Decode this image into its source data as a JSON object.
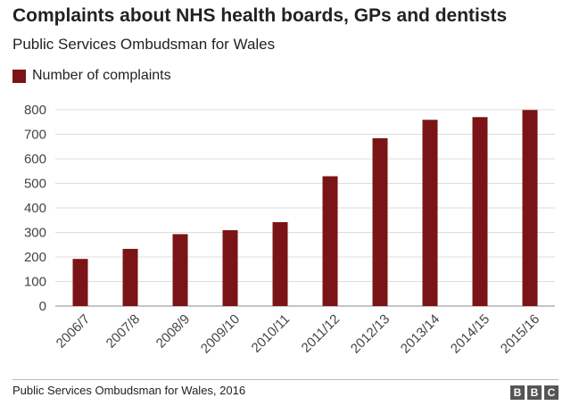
{
  "header": {
    "title": "Complaints about NHS health boards, GPs and dentists",
    "subtitle": "Public Services Ombudsman for Wales"
  },
  "legend": {
    "label": "Number of complaints",
    "color": "#7b1416"
  },
  "chart_data": {
    "type": "bar",
    "title": "Complaints about NHS health boards, GPs and dentists",
    "subtitle": "Public Services Ombudsman for Wales",
    "xlabel": "",
    "ylabel": "",
    "categories": [
      "2006/7",
      "2007/8",
      "2008/9",
      "2009/10",
      "2010/11",
      "2011/12",
      "2012/13",
      "2013/14",
      "2014/15",
      "2015/16"
    ],
    "series": [
      {
        "name": "Number of complaints",
        "color": "#7b1416",
        "values": [
          192,
          233,
          293,
          309,
          342,
          529,
          684,
          759,
          770,
          799
        ]
      }
    ],
    "ylim": [
      0,
      800
    ],
    "yticks": [
      0,
      100,
      200,
      300,
      400,
      500,
      600,
      700,
      800
    ],
    "grid": true,
    "legend_position": "top-left"
  },
  "footer": {
    "source": "Public Services Ombudsman for Wales, 2016",
    "logo_letters": [
      "B",
      "B",
      "C"
    ]
  }
}
